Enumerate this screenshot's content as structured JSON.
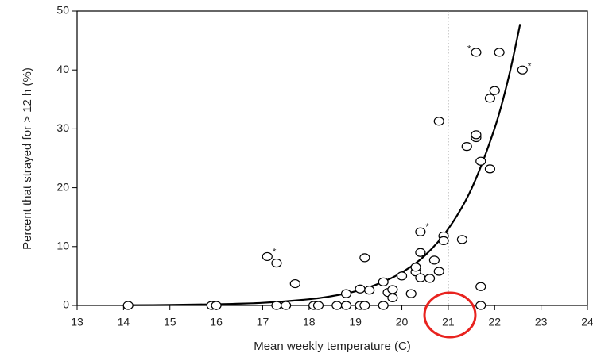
{
  "chart_data": {
    "type": "scatter",
    "xlabel": "Mean weekly temperature (C)",
    "ylabel": "Percent that strayed for > 12 h (%)",
    "color": "#000000",
    "x": [
      14.1,
      15.9,
      16.0,
      17.1,
      17.3,
      17.3,
      17.5,
      17.7,
      18.1,
      18.2,
      18.6,
      18.8,
      18.8,
      19.1,
      19.2,
      19.1,
      19.2,
      19.3,
      19.6,
      19.6,
      19.7,
      19.8,
      19.8,
      20.0,
      20.2,
      20.3,
      20.3,
      20.4,
      20.4,
      20.4,
      20.6,
      20.7,
      20.8,
      20.8,
      20.9,
      20.9,
      21.3,
      21.4,
      21.6,
      21.6,
      21.6,
      21.7,
      21.7,
      21.7,
      21.9,
      21.9,
      22.0,
      22.1,
      22.6
    ],
    "values": [
      0,
      0,
      0,
      8.3,
      7.2,
      0,
      0,
      3.7,
      0,
      0,
      0,
      0,
      2,
      0,
      0,
      2.8,
      8.1,
      2.6,
      0,
      4,
      2.2,
      1.3,
      2.7,
      5,
      2,
      5.7,
      6.5,
      12.5,
      9,
      4.7,
      4.6,
      7.7,
      5.8,
      31.3,
      11.8,
      11,
      11.2,
      27,
      43,
      28.5,
      29,
      24.5,
      3.2,
      0,
      35.2,
      23.2,
      36.5,
      43,
      40
    ],
    "curve": {
      "x": [
        14,
        15,
        16,
        17,
        18,
        18.5,
        19,
        19.5,
        20,
        20.5,
        21,
        21.5,
        22,
        22.3,
        22.55
      ],
      "values": [
        0.04,
        0.08,
        0.2,
        0.45,
        1.05,
        1.6,
        2.4,
        3.7,
        5.6,
        8.5,
        13,
        19.8,
        30.1,
        38.7,
        47.8
      ]
    },
    "annotations": [
      {
        "text": "*",
        "x": 17.25,
        "y": 9
      },
      {
        "text": "*",
        "x": 20.55,
        "y": 13.2
      },
      {
        "text": "*",
        "x": 21.45,
        "y": 43.5
      },
      {
        "text": "*",
        "x": 22.75,
        "y": 40.5
      }
    ],
    "vline": 21,
    "xlim": [
      13,
      24
    ],
    "ylim": [
      0,
      50
    ],
    "xticks": [
      13,
      14,
      15,
      16,
      17,
      18,
      19,
      20,
      21,
      22,
      23,
      24
    ],
    "yticks": [
      0,
      10,
      20,
      30,
      40,
      50
    ]
  }
}
